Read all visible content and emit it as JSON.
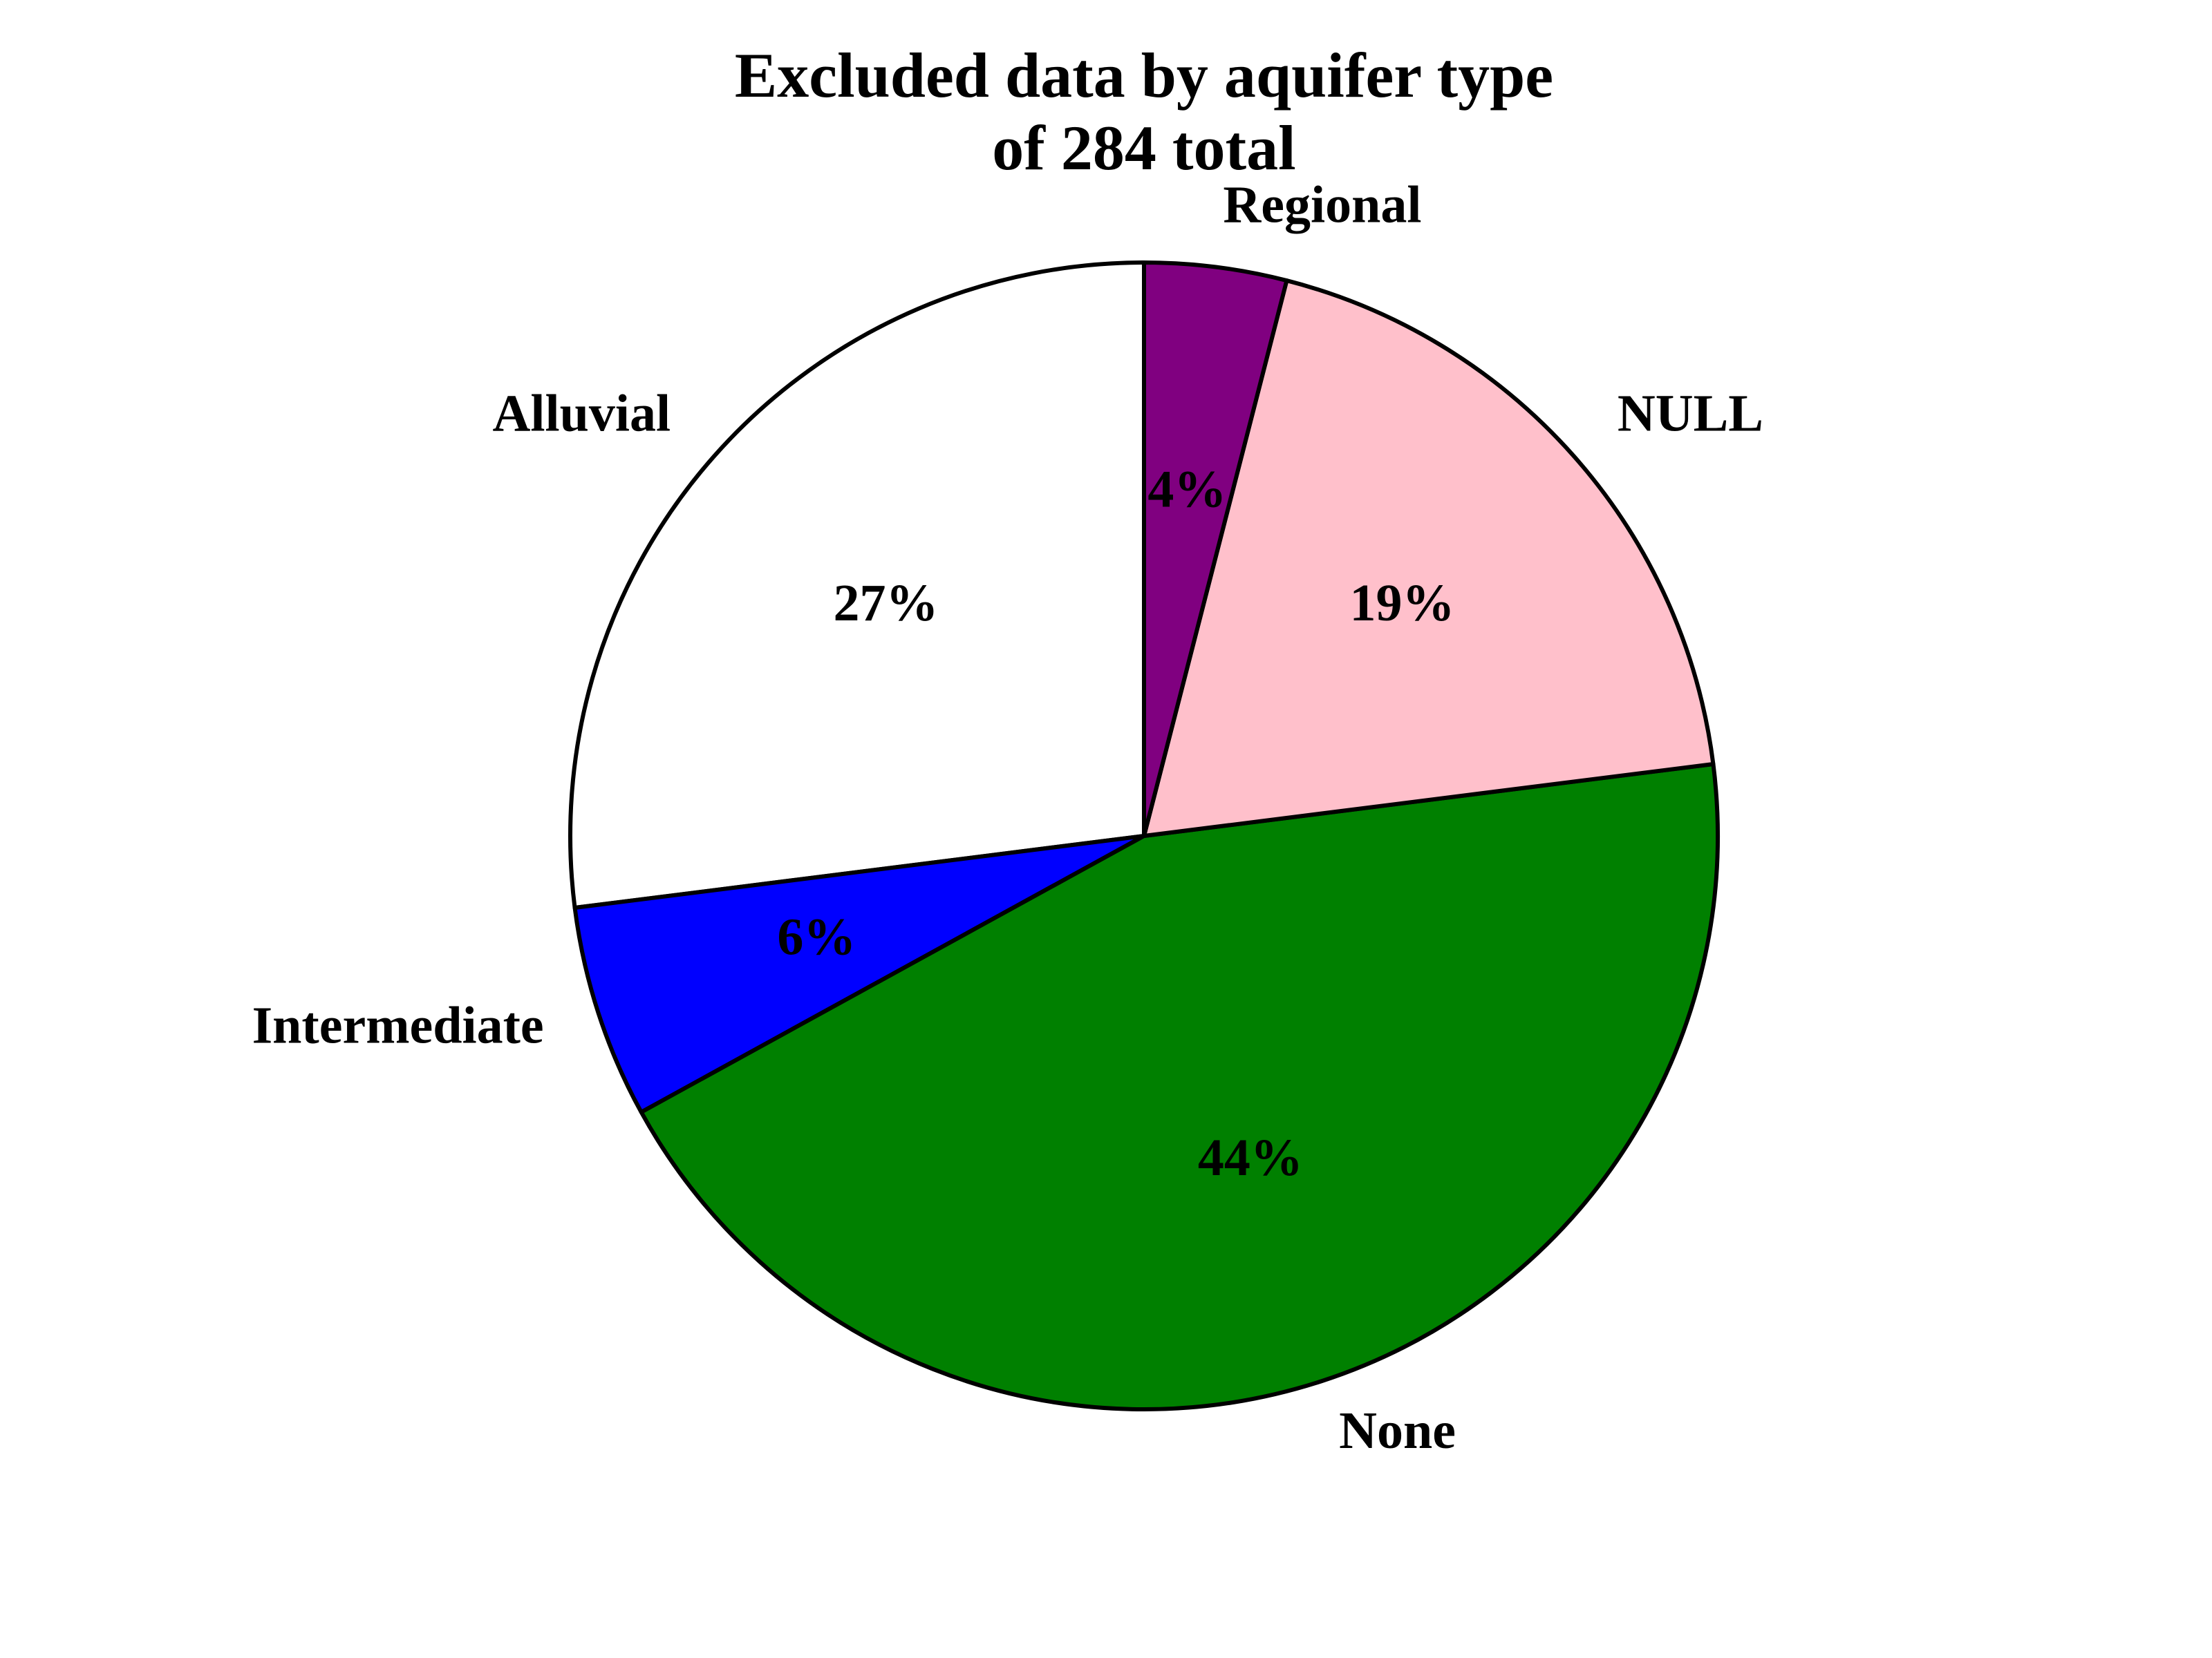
{
  "chart_data": {
    "type": "pie",
    "title_lines": [
      "Excluded data by aquifer type",
      "of 284 total"
    ],
    "start_angle_deg": 90,
    "direction": "counterclockwise",
    "slices": [
      {
        "label": "Alluvial",
        "value": 27,
        "pct_label": "27%",
        "color": "#ffffff"
      },
      {
        "label": "Intermediate",
        "value": 6,
        "pct_label": "6%",
        "color": "#0000ff"
      },
      {
        "label": "None",
        "value": 44,
        "pct_label": "44%",
        "color": "#008000"
      },
      {
        "label": "NULL",
        "value": 19,
        "pct_label": "19%",
        "color": "#ffc0cb"
      },
      {
        "label": "Regional",
        "value": 4,
        "pct_label": "4%",
        "color": "#800080"
      }
    ]
  }
}
